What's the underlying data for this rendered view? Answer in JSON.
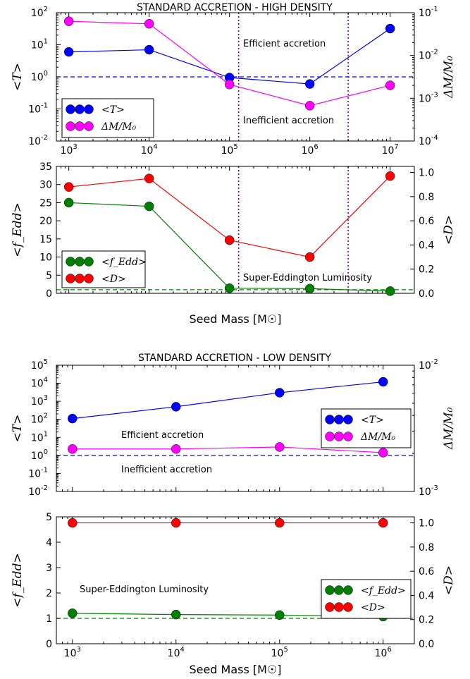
{
  "chart_data": [
    {
      "type": "line",
      "section": "high_density",
      "title": "STANDARD ACCRETION - HIGH DENSITY",
      "panel": "top",
      "x": [
        1000,
        10000,
        100000,
        1000000,
        10000000
      ],
      "x_tick_labels": [
        "10",
        "10",
        "10",
        "10",
        "10"
      ],
      "x_tick_exponents": [
        "3",
        "4",
        "5",
        "6",
        "7"
      ],
      "x_scale": "log",
      "xlim": [
        700,
        20000000
      ],
      "ylabel": "<T>",
      "ylabel_right": "ΔM/M₀",
      "y_scale": "log",
      "ylim": [
        0.01,
        100
      ],
      "y_tick_labels": [
        "10",
        "10",
        "10",
        "10",
        "10"
      ],
      "y_tick_exponents": [
        "-2",
        "-1",
        "0",
        "1",
        "2"
      ],
      "y2_scale": "log",
      "y2lim": [
        0.0001,
        0.1
      ],
      "y2_tick_labels": [
        "10",
        "10",
        "10",
        "10"
      ],
      "y2_tick_exponents": [
        "-4",
        "-3",
        "-2",
        "-1"
      ],
      "series": [
        {
          "name": "<T>",
          "axis": "left",
          "color": "#0000ff",
          "values": [
            6,
            7,
            0.95,
            0.6,
            32
          ]
        },
        {
          "name": "ΔM/M₀",
          "axis": "right",
          "color": "#ff00ff",
          "values": [
            0.063,
            0.055,
            0.0021,
            0.00067,
            0.002
          ]
        }
      ],
      "hlines": [
        {
          "y": 1,
          "axis": "left",
          "color": "#0000ff",
          "style": "dashed"
        }
      ],
      "vlines": [
        {
          "x": 130000,
          "color": "#800080",
          "style": "dotted"
        },
        {
          "x": 3000000,
          "color": "#800080",
          "style": "dotted"
        }
      ],
      "annotations": [
        {
          "text": "Efficient accretion",
          "color": "#0000cc"
        },
        {
          "text": "Inefficient accretion",
          "color": "#0000cc"
        }
      ],
      "legend_placement": "lower-left"
    },
    {
      "type": "line",
      "section": "high_density",
      "panel": "bottom",
      "x": [
        1000,
        10000,
        100000,
        1000000,
        10000000
      ],
      "x_scale": "log",
      "xlim": [
        700,
        20000000
      ],
      "xlabel": "Seed Mass [M☉]",
      "ylabel": "<f_Edd>",
      "ylabel_right": "<D>",
      "ylim": [
        0,
        35
      ],
      "y_ticks": [
        0,
        5,
        10,
        15,
        20,
        25,
        30,
        35
      ],
      "y2lim": [
        0,
        1.05
      ],
      "y2_ticks": [
        "0.0",
        "0.2",
        "0.4",
        "0.6",
        "0.8",
        "1.0"
      ],
      "series": [
        {
          "name": "<f_Edd>",
          "axis": "left",
          "color": "#008000",
          "values": [
            25,
            24,
            1.4,
            1.3,
            0.6
          ]
        },
        {
          "name": "<D>",
          "axis": "right",
          "color": "#ff0000",
          "values": [
            0.88,
            0.95,
            0.44,
            0.3,
            0.97
          ]
        }
      ],
      "hlines": [
        {
          "y": 1,
          "axis": "left",
          "color": "#008000",
          "style": "dashed"
        }
      ],
      "vlines": [
        {
          "x": 130000,
          "color": "#800080",
          "style": "dotted"
        },
        {
          "x": 3000000,
          "color": "#800080",
          "style": "dotted"
        }
      ],
      "annotations": [
        {
          "text": "Super-Eddington Luminosity",
          "color": "#008000"
        }
      ],
      "legend_placement": "lower-left"
    },
    {
      "type": "line",
      "section": "low_density",
      "title": "STANDARD ACCRETION - LOW DENSITY",
      "panel": "top",
      "x": [
        1000,
        10000,
        100000,
        1000000
      ],
      "x_scale": "log",
      "xlim": [
        700,
        2000000
      ],
      "ylabel": "<T>",
      "ylabel_right": "ΔM/M₀",
      "y_scale": "log",
      "ylim": [
        0.01,
        100000
      ],
      "y_tick_labels": [
        "10",
        "10",
        "10",
        "10",
        "10",
        "10",
        "10",
        "10"
      ],
      "y_tick_exponents": [
        "-2",
        "-1",
        "0",
        "1",
        "2",
        "3",
        "4",
        "5"
      ],
      "y2_scale": "log",
      "y2lim": [
        0.001,
        0.01
      ],
      "y2_tick_labels": [
        "10",
        "10"
      ],
      "y2_tick_exponents": [
        "-3",
        "-2"
      ],
      "series": [
        {
          "name": "<T>",
          "axis": "left",
          "color": "#0000ff",
          "values": [
            110,
            500,
            3000,
            12000
          ]
        },
        {
          "name": "ΔM/M₀",
          "axis": "right",
          "color": "#ff00ff",
          "values": [
            0.00217,
            0.00217,
            0.00225,
            0.00203
          ]
        }
      ],
      "hlines": [
        {
          "y": 1,
          "axis": "left",
          "color": "#0000ff",
          "style": "dashed"
        }
      ],
      "annotations": [
        {
          "text": "Efficient accretion",
          "color": "#0000cc"
        },
        {
          "text": "Inefficient accretion",
          "color": "#0000cc"
        }
      ],
      "legend_placement": "right"
    },
    {
      "type": "line",
      "section": "low_density",
      "panel": "bottom",
      "x": [
        1000,
        10000,
        100000,
        1000000
      ],
      "x_tick_labels": [
        "10",
        "10",
        "10",
        "10"
      ],
      "x_tick_exponents": [
        "3",
        "4",
        "5",
        "6"
      ],
      "x_scale": "log",
      "xlim": [
        700,
        2000000
      ],
      "xlabel": "Seed Mass [M☉]",
      "ylabel": "<f_Edd>",
      "ylabel_right": "<D>",
      "ylim": [
        0,
        5
      ],
      "y_ticks": [
        0,
        1,
        2,
        3,
        4,
        5
      ],
      "y2lim": [
        0,
        1.05
      ],
      "y2_ticks": [
        "0.0",
        "0.2",
        "0.4",
        "0.6",
        "0.8",
        "1.0"
      ],
      "series": [
        {
          "name": "<f_Edd>",
          "axis": "left",
          "color": "#008000",
          "values": [
            1.2,
            1.15,
            1.13,
            1.07
          ]
        },
        {
          "name": "<D>",
          "axis": "right",
          "color": "#ff0000",
          "values": [
            1.0,
            1.0,
            1.0,
            1.0
          ]
        }
      ],
      "hlines": [
        {
          "y": 1,
          "axis": "left",
          "color": "#008000",
          "style": "dashed"
        }
      ],
      "annotations": [
        {
          "text": "Super-Eddington Luminosity",
          "color": "#008000"
        }
      ],
      "legend_placement": "right"
    }
  ]
}
